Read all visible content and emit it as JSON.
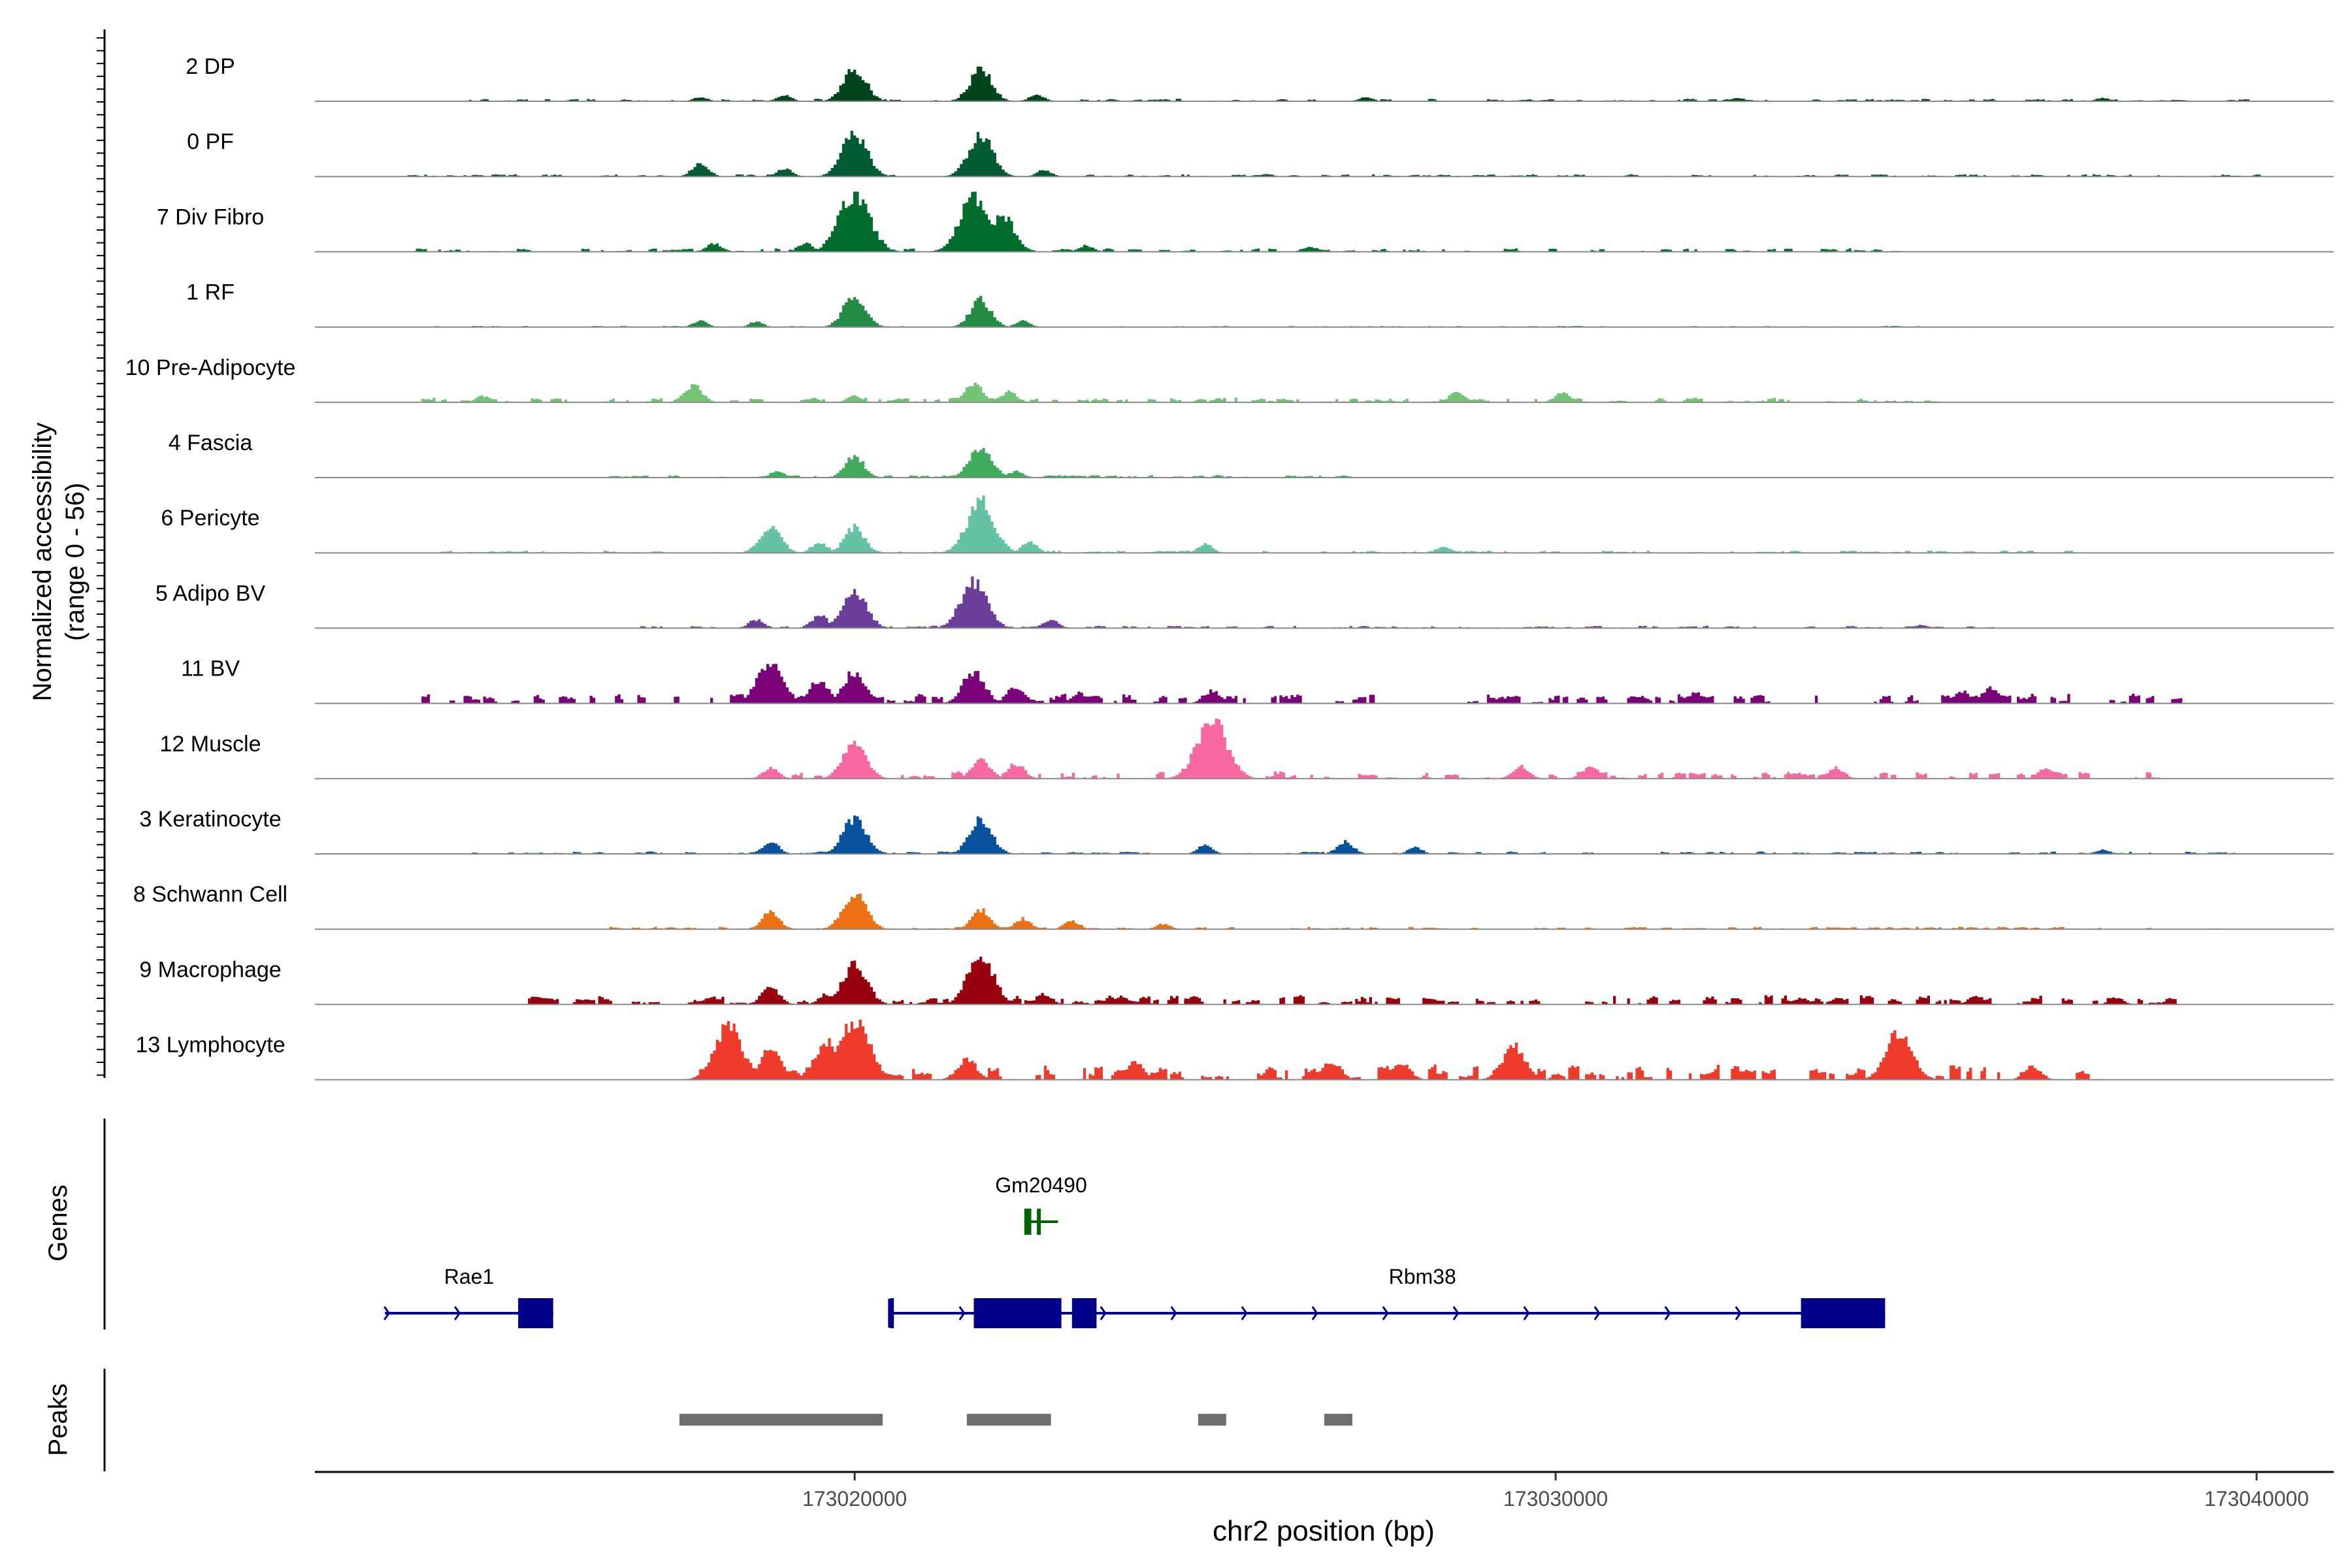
{
  "chart_data": {
    "type": "area",
    "title": "",
    "coverage_panel": {
      "ylabel_line1": "Normalized accessibility",
      "ylabel_line2": "(range 0 - 56)",
      "ylim": [
        0,
        56
      ]
    },
    "xlabel": "chr2 position (bp)",
    "xlim": [
      173012300,
      173041100
    ],
    "x_ticks": [
      {
        "value": 173020000,
        "label": "173020000"
      },
      {
        "value": 173030000,
        "label": "173030000"
      },
      {
        "value": 173040000,
        "label": "173040000"
      }
    ],
    "tracks": [
      {
        "name": "2 DP",
        "color": "#00441b",
        "peaks": [
          [
            173020000,
            32
          ],
          [
            173021800,
            30
          ],
          [
            173019000,
            6
          ],
          [
            173017800,
            4
          ],
          [
            173022600,
            6
          ],
          [
            173027300,
            4
          ],
          [
            173032600,
            3
          ],
          [
            173037800,
            3
          ]
        ],
        "noise": [
          [
            173014500,
            173040000,
            2
          ]
        ]
      },
      {
        "name": "0 PF",
        "color": "#005a32",
        "peaks": [
          [
            173020000,
            40
          ],
          [
            173021800,
            38
          ],
          [
            173017800,
            12
          ],
          [
            173019000,
            8
          ],
          [
            173022700,
            6
          ]
        ],
        "noise": [
          [
            173013500,
            173040000,
            2
          ]
        ]
      },
      {
        "name": "7 Div Fibro",
        "color": "#006d2c",
        "peaks": [
          [
            173020000,
            56
          ],
          [
            173021700,
            50
          ],
          [
            173022100,
            36
          ],
          [
            173018000,
            8
          ],
          [
            173019300,
            8
          ],
          [
            173023300,
            6
          ],
          [
            173026500,
            5
          ]
        ],
        "noise": [
          [
            173013600,
            173034800,
            3
          ]
        ]
      },
      {
        "name": "1 RF",
        "color": "#238b45",
        "peaks": [
          [
            173020000,
            30
          ],
          [
            173021800,
            26
          ],
          [
            173017800,
            6
          ],
          [
            173018600,
            5
          ],
          [
            173022400,
            6
          ]
        ],
        "noise": [
          [
            173014000,
            173036000,
            1
          ]
        ]
      },
      {
        "name": "10 Pre-Adipocyte",
        "color": "#74c476",
        "peaks": [
          [
            173017700,
            16
          ],
          [
            173021700,
            18
          ],
          [
            173022200,
            10
          ],
          [
            173020000,
            6
          ],
          [
            173028600,
            10
          ],
          [
            173030100,
            9
          ],
          [
            173014700,
            6
          ]
        ],
        "noise": [
          [
            173013800,
            173035600,
            4
          ]
        ]
      },
      {
        "name": "4 Fascia",
        "color": "#41ab5d",
        "peaks": [
          [
            173020000,
            20
          ],
          [
            173021800,
            30
          ],
          [
            173018900,
            6
          ],
          [
            173022300,
            6
          ]
        ],
        "noise": [
          [
            173016500,
            173027000,
            2
          ]
        ]
      },
      {
        "name": "6 Pericyte",
        "color": "#66c2a4",
        "peaks": [
          [
            173021800,
            48
          ],
          [
            173018800,
            26
          ],
          [
            173020000,
            24
          ],
          [
            173019500,
            10
          ],
          [
            173022500,
            10
          ],
          [
            173025000,
            8
          ],
          [
            173028400,
            6
          ]
        ],
        "noise": [
          [
            173014000,
            173037400,
            2
          ]
        ]
      },
      {
        "name": "5 Adipo BV",
        "color": "#6a3d9a",
        "peaks": [
          [
            173020000,
            36
          ],
          [
            173021700,
            44
          ],
          [
            173019500,
            12
          ],
          [
            173018600,
            8
          ],
          [
            173022800,
            8
          ],
          [
            173035200,
            3
          ]
        ],
        "noise": [
          [
            173016500,
            173036500,
            2
          ]
        ]
      },
      {
        "name": "11 BV",
        "color": "#7a0177",
        "peaks": [
          [
            173018800,
            40
          ],
          [
            173020000,
            30
          ],
          [
            173021700,
            30
          ],
          [
            173019500,
            22
          ],
          [
            173022300,
            16
          ],
          [
            173023200,
            10
          ],
          [
            173025100,
            12
          ],
          [
            173036200,
            14
          ],
          [
            173035800,
            12
          ],
          [
            173032000,
            10
          ]
        ],
        "noise": [
          [
            173013300,
            173038800,
            8
          ]
        ]
      },
      {
        "name": "12 Muscle",
        "color": "#f768a1",
        "peaks": [
          [
            173025100,
            56
          ],
          [
            173020000,
            34
          ],
          [
            173021800,
            18
          ],
          [
            173022300,
            14
          ],
          [
            173029500,
            12
          ],
          [
            173030500,
            12
          ],
          [
            173018800,
            10
          ],
          [
            173034000,
            10
          ],
          [
            173037000,
            10
          ]
        ],
        "noise": [
          [
            173018700,
            173038500,
            6
          ]
        ]
      },
      {
        "name": "3 Keratinocyte",
        "color": "#08519c",
        "peaks": [
          [
            173020000,
            34
          ],
          [
            173021800,
            32
          ],
          [
            173018800,
            12
          ],
          [
            173027000,
            12
          ],
          [
            173025000,
            8
          ],
          [
            173028000,
            6
          ],
          [
            173037800,
            4
          ]
        ],
        "noise": [
          [
            173014500,
            173040000,
            2
          ]
        ]
      },
      {
        "name": "8 Schwann Cell",
        "color": "#ec7014",
        "peaks": [
          [
            173020000,
            34
          ],
          [
            173018800,
            16
          ],
          [
            173021800,
            18
          ],
          [
            173022400,
            10
          ],
          [
            173023100,
            8
          ],
          [
            173024400,
            5
          ]
        ],
        "noise": [
          [
            173016000,
            173039500,
            2
          ]
        ]
      },
      {
        "name": "9 Macrophage",
        "color": "#99000d",
        "peaks": [
          [
            173020000,
            38
          ],
          [
            173021800,
            44
          ],
          [
            173018800,
            16
          ],
          [
            173019600,
            10
          ],
          [
            173022700,
            10
          ],
          [
            173023800,
            8
          ],
          [
            173033500,
            6
          ],
          [
            173036000,
            8
          ],
          [
            173038000,
            6
          ]
        ],
        "noise": [
          [
            173015300,
            173039000,
            8
          ]
        ]
      },
      {
        "name": "13 Lymphocyte",
        "color": "#ef3b2c",
        "peaks": [
          [
            173018200,
            50
          ],
          [
            173020000,
            56
          ],
          [
            173019600,
            36
          ],
          [
            173018800,
            28
          ],
          [
            173034900,
            44
          ],
          [
            173029400,
            32
          ],
          [
            173021600,
            20
          ],
          [
            173024000,
            16
          ],
          [
            173026800,
            18
          ],
          [
            173027800,
            16
          ],
          [
            173036800,
            12
          ]
        ],
        "noise": [
          [
            173017500,
            173037800,
            12
          ]
        ]
      }
    ],
    "genes_panel": {
      "title": "Genes",
      "genes": [
        {
          "name": "Gm20490",
          "color": "#006400",
          "strand": "-",
          "start": 173022420,
          "end": 173022900,
          "row": 0,
          "exons": [
            [
              173022420,
              173022520
            ],
            [
              173022600,
              173022650
            ]
          ]
        },
        {
          "name": "Rae1",
          "color": "#00008b",
          "strand": "+",
          "start": 173013300,
          "end": 173015700,
          "row": 1,
          "exons": [
            [
              173015200,
              173015700
            ]
          ]
        },
        {
          "name": "Rbm38",
          "color": "#00008b",
          "strand": "+",
          "start": 173020500,
          "end": 173034700,
          "row": 1,
          "exons": [
            [
              173020500,
              173020560
            ],
            [
              173021700,
              173022950
            ],
            [
              173023100,
              173023450
            ],
            [
              173033500,
              173034700
            ]
          ]
        }
      ]
    },
    "peaks_panel": {
      "title": "Peaks",
      "color": "#6e6e6e",
      "regions": [
        [
          173017500,
          173020400
        ],
        [
          173021600,
          173022800
        ],
        [
          173024900,
          173025300
        ],
        [
          173026700,
          173027100
        ]
      ]
    }
  }
}
